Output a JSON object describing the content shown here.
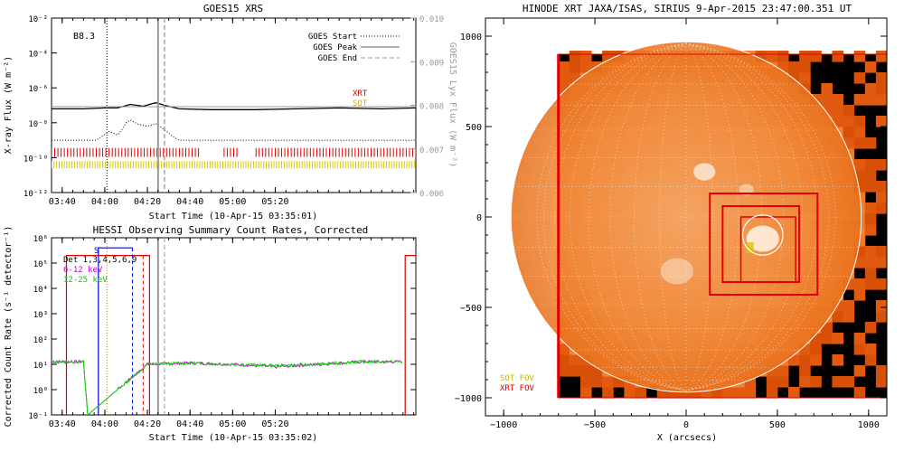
{
  "panels": {
    "goes": {
      "title": "GOES15 XRS",
      "class_label": "B8.3",
      "xlabel": "Start Time (10-Apr-15 03:35:01)",
      "ylabel": "X-ray Flux (W m⁻²)",
      "y2label": "GOES15 Lyx Flux (W m⁻²)",
      "legend": {
        "start": "GOES Start",
        "peak": "GOES Peak",
        "end": "GOES End",
        "xrt": "XRT",
        "sot": "SOT"
      },
      "colors": {
        "xrt": "#e00000",
        "sot": "#d8c800",
        "secondary": "#999999"
      }
    },
    "hessi": {
      "title": "HESSI Observing Summary Count Rates, Corrected",
      "xlabel": "Start Time (10-Apr-15 03:35:02)",
      "ylabel": "Corrected Count Rate (s⁻¹ detector⁻¹)",
      "legend": {
        "det": "Det 1,3,4,5,6,9",
        "band1": "6-12 keV",
        "band2": "12-25 keV",
        "s_marker": "S"
      },
      "colors": {
        "band1": "#cc00cc",
        "band2": "#00dd00",
        "attn": "#e00000",
        "flag": "#0000dd"
      }
    },
    "xrt": {
      "title": "HINODE XRT JAXA/ISAS, SIRIUS  9-Apr-2015 23:47:00.351 UT",
      "xlabel": "X (arcsecs)",
      "legend": {
        "sot_fov": "SOT FOV",
        "xrt_fov": "XRT FOV"
      },
      "colors": {
        "sot": "#d8c800",
        "xrt": "#e00000",
        "disk": "#f07a1e"
      }
    }
  },
  "chart_data": [
    {
      "type": "line",
      "title": "GOES15 XRS",
      "xlabel": "Start Time (10-Apr-15 03:35:01)",
      "ylabel": "X-ray Flux (W m⁻²)",
      "x_ticks": [
        "03:40",
        "04:00",
        "04:20",
        "04:40",
        "05:00",
        "05:20"
      ],
      "y_ticks": [
        "10⁻¹²",
        "10⁻¹⁰",
        "10⁻⁸",
        "10⁻⁶",
        "10⁻⁴",
        "10⁻²"
      ],
      "y_log": true,
      "ylim_log10": [
        -12,
        -2
      ],
      "y2_ticks": [
        "0.006",
        "0.007",
        "0.008",
        "0.009",
        "0.010"
      ],
      "y2lim": [
        0.006,
        0.01
      ],
      "xlim_minutes": [
        35,
        206
      ],
      "events_minutes": {
        "start": 61,
        "peak": 85,
        "end": 88
      },
      "series": [
        {
          "name": "",
          "style": "solid",
          "x_minutes": [
            35,
            50,
            60,
            66,
            72,
            78,
            84,
            88,
            95,
            110,
            130,
            150,
            170,
            190,
            206
          ],
          "log10_values": [
            -7.2,
            -7.2,
            -7.15,
            -7.15,
            -6.95,
            -7.05,
            -6.85,
            -7.0,
            -7.2,
            -7.25,
            -7.25,
            -7.2,
            -7.15,
            -7.2,
            -7.15
          ]
        },
        {
          "name": "",
          "style": "gray",
          "x_minutes": [
            35,
            206
          ],
          "y2_values": [
            0.00797,
            0.00797
          ]
        },
        {
          "name": "",
          "style": "dotted",
          "x_minutes": [
            35,
            56,
            62,
            66,
            68,
            70,
            72,
            76,
            80,
            84,
            88,
            92,
            95,
            206
          ],
          "log10_values": [
            -9.0,
            -9.0,
            -8.5,
            -8.7,
            -8.4,
            -8.0,
            -7.85,
            -8.1,
            -8.2,
            -8.05,
            -8.4,
            -8.8,
            -9.0,
            -9.0
          ]
        }
      ],
      "xrt_obs_minutes": [
        [
          35,
          104
        ],
        [
          116,
          123
        ],
        [
          131,
          206
        ]
      ],
      "sot_obs_minutes": [
        [
          35,
          206
        ]
      ]
    },
    {
      "type": "line",
      "title": "HESSI Observing Summary Count Rates, Corrected",
      "xlabel": "Start Time (10-Apr-15 03:35:02)",
      "ylabel": "Corrected Count Rate (s⁻¹ detector⁻¹)",
      "x_ticks": [
        "03:40",
        "04:00",
        "04:20",
        "04:40",
        "05:00",
        "05:20"
      ],
      "y_ticks": [
        "10⁻¹",
        "10⁰",
        "10¹",
        "10²",
        "10³",
        "10⁴",
        "10⁵",
        "10⁶"
      ],
      "y_log": true,
      "ylim_log10": [
        -1,
        6
      ],
      "xlim_minutes": [
        35,
        206
      ],
      "series": [
        {
          "name": "6-12 keV",
          "x_minutes": [
            35,
            50,
            52,
            80,
            100,
            120,
            140,
            160,
            180,
            200
          ],
          "log10_values": [
            1.1,
            1.1,
            -1,
            1.0,
            1.05,
            1.0,
            0.9,
            1.0,
            1.1,
            1.1
          ]
        },
        {
          "name": "12-25 keV",
          "x_minutes": [
            35,
            50,
            52,
            80,
            100,
            120,
            140,
            160,
            180,
            200
          ],
          "log10_values": [
            1.1,
            1.1,
            -1,
            1.0,
            1.05,
            1.0,
            0.95,
            1.0,
            1.1,
            1.1
          ]
        }
      ],
      "data_gaps_minutes": [
        [
          52,
          80
        ],
        [
          201,
          206
        ]
      ],
      "attenuator_minutes": [
        [
          42,
          81
        ],
        [
          201,
          206
        ]
      ],
      "saa_minutes": [
        [
          57,
          73
        ]
      ]
    },
    {
      "type": "image",
      "title": "HINODE XRT JAXA/ISAS, SIRIUS  9-Apr-2015 23:47:00.351 UT",
      "xlabel": "X (arcsecs)",
      "x_ticks": [
        "−1000",
        "−500",
        "0",
        "500",
        "1000"
      ],
      "y_ticks": [
        "−1000",
        "−500",
        "0",
        "500",
        "1000"
      ],
      "xlim": [
        -1100,
        1100
      ],
      "ylim": [
        -1100,
        1100
      ],
      "solar_radius_arcsec": 960,
      "fov_boxes": [
        [
          130,
          -430,
          720,
          130
        ],
        [
          200,
          -360,
          620,
          60
        ]
      ],
      "target_circle": {
        "x": 420,
        "y": -100,
        "r": 110
      }
    }
  ]
}
